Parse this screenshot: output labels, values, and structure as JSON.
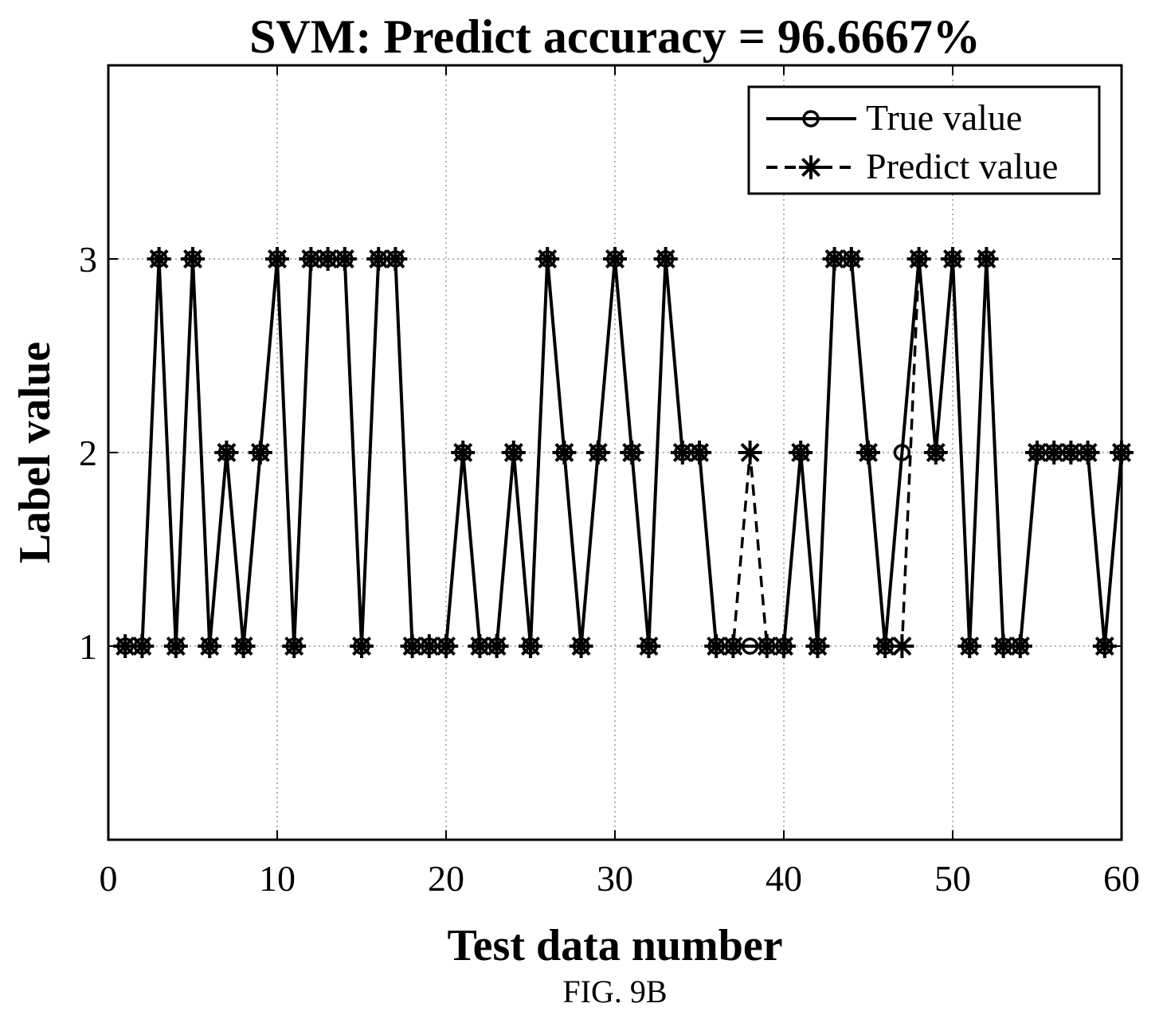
{
  "chart_data": {
    "type": "line",
    "title": "SVM: Predict accuracy = 96.6667%",
    "xlabel": "Test data number",
    "ylabel": "Label value",
    "xlim": [
      0,
      60
    ],
    "ylim": [
      0,
      4
    ],
    "xticks": [
      0,
      10,
      20,
      30,
      40,
      50,
      60
    ],
    "yticks": [
      1,
      2,
      3
    ],
    "grid": true,
    "legend_position": "top-right",
    "x": [
      1,
      2,
      3,
      4,
      5,
      6,
      7,
      8,
      9,
      10,
      11,
      12,
      13,
      14,
      15,
      16,
      17,
      18,
      19,
      20,
      21,
      22,
      23,
      24,
      25,
      26,
      27,
      28,
      29,
      30,
      31,
      32,
      33,
      34,
      35,
      36,
      37,
      38,
      39,
      40,
      41,
      42,
      43,
      44,
      45,
      46,
      47,
      48,
      49,
      50,
      51,
      52,
      53,
      54,
      55,
      56,
      57,
      58,
      59,
      60
    ],
    "series": [
      {
        "name": "True value",
        "marker": "o",
        "linestyle": "solid",
        "values": [
          1,
          1,
          3,
          1,
          3,
          1,
          2,
          1,
          2,
          3,
          1,
          3,
          3,
          3,
          1,
          3,
          3,
          1,
          1,
          1,
          2,
          1,
          1,
          2,
          1,
          3,
          2,
          1,
          2,
          3,
          2,
          1,
          3,
          2,
          2,
          1,
          1,
          1,
          1,
          1,
          2,
          1,
          3,
          3,
          2,
          1,
          2,
          3,
          2,
          3,
          1,
          3,
          1,
          1,
          2,
          2,
          2,
          2,
          1,
          2
        ]
      },
      {
        "name": "Predict value",
        "marker": "*",
        "linestyle": "dashed",
        "values": [
          1,
          1,
          3,
          1,
          3,
          1,
          2,
          1,
          2,
          3,
          1,
          3,
          3,
          3,
          1,
          3,
          3,
          1,
          1,
          1,
          2,
          1,
          1,
          2,
          1,
          3,
          2,
          1,
          2,
          3,
          2,
          1,
          3,
          2,
          2,
          1,
          1,
          2,
          1,
          1,
          2,
          1,
          3,
          3,
          2,
          1,
          1,
          3,
          2,
          3,
          1,
          3,
          1,
          1,
          2,
          2,
          2,
          2,
          1,
          2
        ]
      }
    ]
  },
  "caption": "FIG. 9B",
  "colors": {
    "line": "#000000",
    "grid": "#9a9a9a",
    "background": "#ffffff"
  }
}
